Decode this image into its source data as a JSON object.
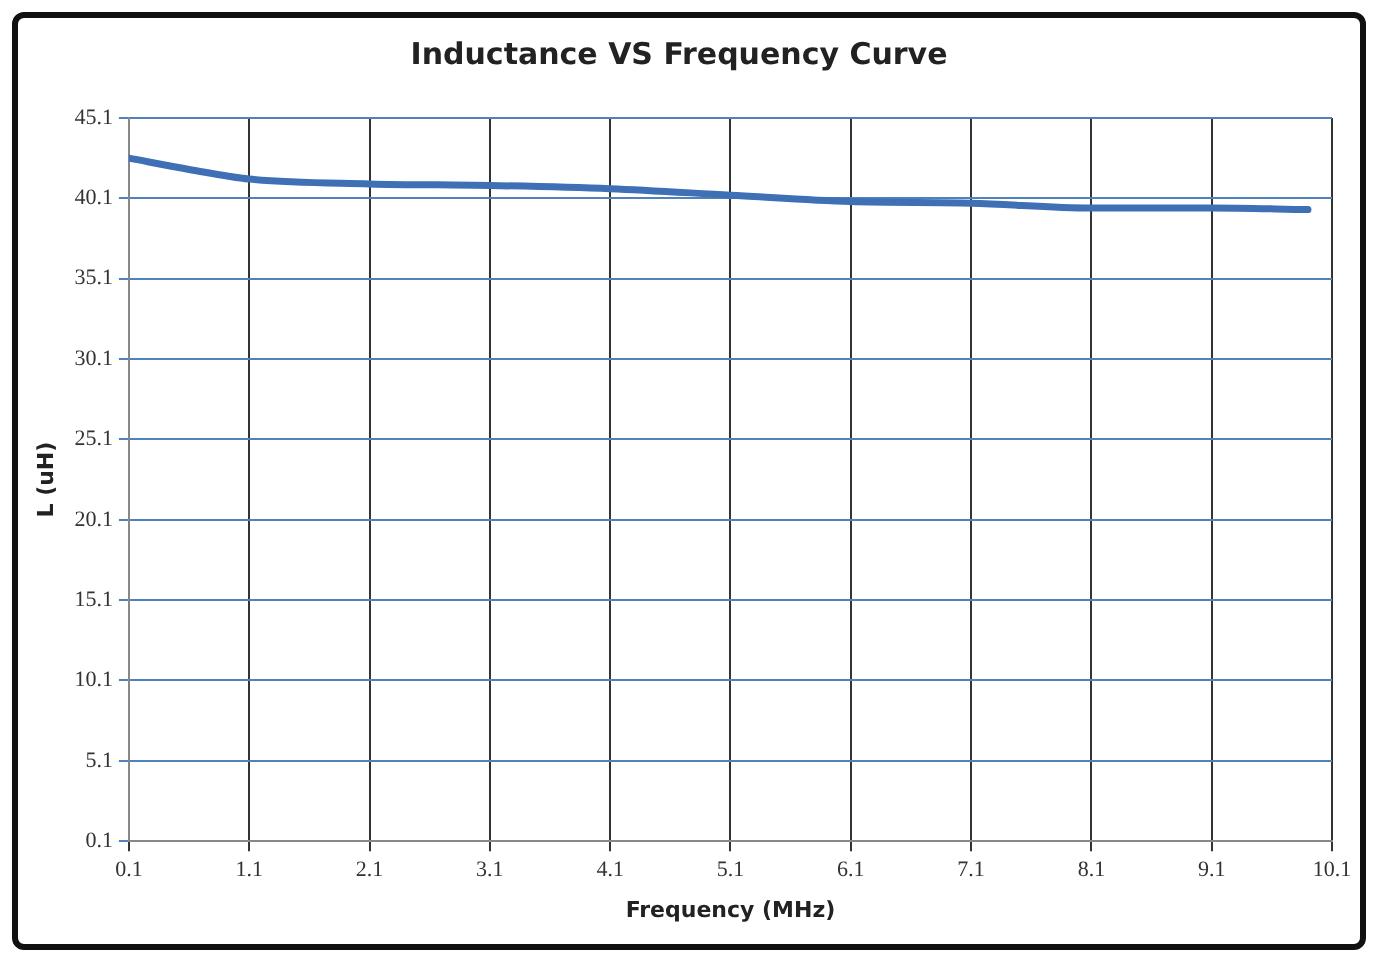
{
  "chart_data": {
    "type": "line",
    "title": "Inductance VS Frequency Curve",
    "xlabel": "Frequency (MHz)",
    "ylabel": "L (uH)",
    "x": [
      0.1,
      0.6,
      1.1,
      2.1,
      3.1,
      4.1,
      5.1,
      6.1,
      7.1,
      8.1,
      9.1,
      9.9
    ],
    "series": [
      {
        "color": "#3f6fb5",
        "values": [
          42.6,
          41.9,
          41.3,
          41.0,
          40.9,
          40.7,
          40.3,
          39.9,
          39.8,
          39.5,
          39.5,
          39.4
        ]
      }
    ],
    "xlim": [
      0.1,
      10.1
    ],
    "xticks": [
      0.1,
      1.1,
      2.1,
      3.1,
      4.1,
      5.1,
      6.1,
      7.1,
      8.1,
      9.1,
      10.1
    ],
    "ylim": [
      0.1,
      45.1
    ],
    "yticks": [
      0.1,
      5.1,
      10.1,
      15.1,
      20.1,
      25.1,
      30.1,
      35.1,
      40.1,
      45.1
    ],
    "grid": true,
    "legend": false,
    "marker": "none",
    "line_style": "solid"
  }
}
